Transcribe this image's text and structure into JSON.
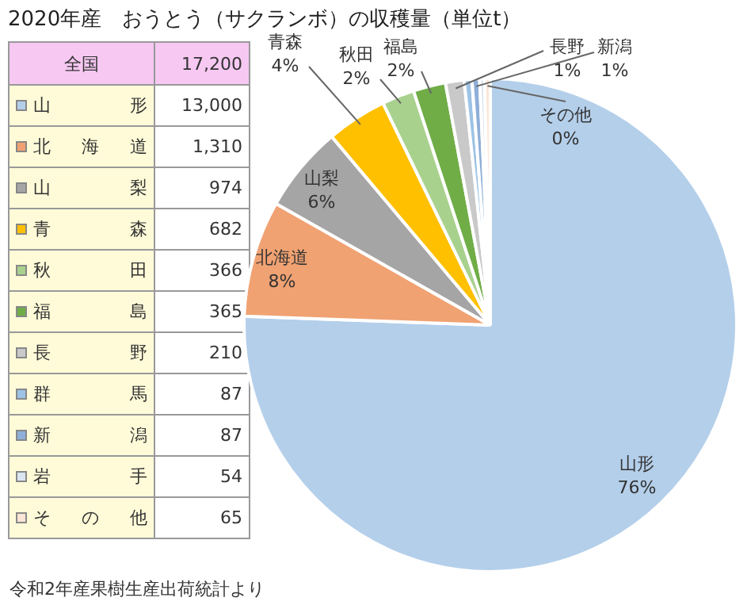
{
  "chart_data": {
    "type": "pie",
    "title": "2020年産　おうとう（サクランボ）の収穫量（単位t）",
    "categories": [
      "山形",
      "北海道",
      "山梨",
      "青森",
      "秋田",
      "福島",
      "長野",
      "群馬",
      "新潟",
      "岩手",
      "その他"
    ],
    "values": [
      13000,
      1310,
      974,
      682,
      366,
      365,
      210,
      87,
      87,
      54,
      65
    ],
    "colors": [
      "#b4cfea",
      "#f0a272",
      "#a5a5a5",
      "#ffc000",
      "#a9d18e",
      "#70ad47",
      "#c9c9c9",
      "#9dc3e6",
      "#8fafd8",
      "#dae5f1",
      "#fbe5d6"
    ],
    "value_labels": [
      "13,000",
      "1,310",
      "974",
      "682",
      "366",
      "365",
      "210",
      "87",
      "87",
      "54",
      "65"
    ],
    "legend": "left",
    "annotations": [
      "全国",
      "17,200",
      "令和2年産果樹生産出荷統計より",
      {
        "text": "76%",
        "x": "山形"
      },
      {
        "text": "8%",
        "x": "北海道"
      },
      {
        "text": "6%",
        "x": "山梨"
      },
      {
        "text": "4%",
        "x": "青森"
      },
      {
        "text": "2%",
        "x": "秋田"
      },
      {
        "text": "2%",
        "x": "福島"
      },
      {
        "text": "1%",
        "x": "長野"
      },
      {
        "text": "1%",
        "x": "新潟"
      },
      {
        "text": "0%",
        "x": "その他"
      }
    ]
  }
}
